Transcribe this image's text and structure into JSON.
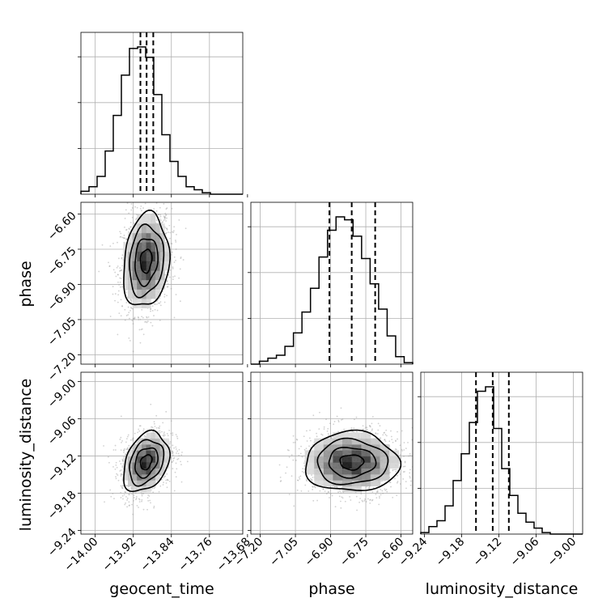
{
  "chart_data": {
    "type": "corner",
    "parameters": [
      "geocent_time",
      "phase",
      "luminosity_distance"
    ],
    "axes": {
      "geocent_time": {
        "ticks": [
          -14.0,
          -13.92,
          -13.84,
          -13.76,
          -13.68
        ],
        "tick_labels": [
          "−14.00",
          "−13.92",
          "−13.84",
          "−13.76",
          "−13.68"
        ],
        "range": [
          -14.03,
          -13.69
        ]
      },
      "phase": {
        "ticks": [
          -7.2,
          -7.05,
          -6.9,
          -6.75,
          -6.6
        ],
        "tick_labels": [
          "−7.20",
          "−7.05",
          "−6.90",
          "−6.75",
          "−6.60"
        ],
        "range": [
          -7.24,
          -6.55
        ]
      },
      "luminosity_distance": {
        "ticks": [
          -9.24,
          -9.18,
          -9.12,
          -9.06,
          -9.0
        ],
        "tick_labels": [
          "−9.24",
          "−9.18",
          "−9.12",
          "−9.06",
          "−9.00"
        ],
        "range": [
          -9.246,
          -8.985
        ]
      }
    },
    "quantiles": {
      "geocent_time": [
        -13.905,
        -13.892,
        -13.878
      ],
      "phase": [
        -6.905,
        -6.81,
        -6.71
      ],
      "luminosity_distance": [
        -9.157,
        -9.13,
        -9.104
      ]
    },
    "histograms": {
      "geocent_time": {
        "edges_range": [
          -14.03,
          -13.69
        ],
        "counts": [
          2,
          5,
          12,
          29,
          53,
          80,
          98,
          99,
          92,
          67,
          40,
          22,
          12,
          5,
          3,
          1,
          0,
          0,
          0,
          0
        ]
      },
      "phase": {
        "edges_range": [
          -7.24,
          -6.55
        ],
        "counts": [
          0,
          2,
          4,
          6,
          12,
          21,
          35,
          51,
          72,
          90,
          99,
          97,
          86,
          71,
          54,
          37,
          19,
          5,
          1
        ]
      },
      "luminosity_distance": {
        "edges_range": [
          -9.246,
          -8.985
        ],
        "counts": [
          1,
          5,
          9,
          19,
          36,
          54,
          75,
          96,
          99,
          71,
          44,
          26,
          14,
          8,
          4,
          1,
          0,
          0,
          0,
          0
        ]
      }
    },
    "pairs": [
      {
        "x": "geocent_time",
        "y": "phase",
        "center": [
          -13.893,
          -6.8
        ],
        "sigma": [
          0.024,
          0.1
        ],
        "rho": 0.15
      },
      {
        "x": "geocent_time",
        "y": "luminosity_distance",
        "center": [
          -13.893,
          -9.13
        ],
        "sigma": [
          0.024,
          0.024
        ],
        "rho": 0.3
      },
      {
        "x": "phase",
        "y": "luminosity_distance",
        "center": [
          -6.81,
          -9.13
        ],
        "sigma": [
          0.1,
          0.024
        ],
        "rho": 0.0
      }
    ],
    "contour_levels_sigma": [
      0.5,
      1.0,
      1.5,
      2.0
    ],
    "grid": true
  }
}
